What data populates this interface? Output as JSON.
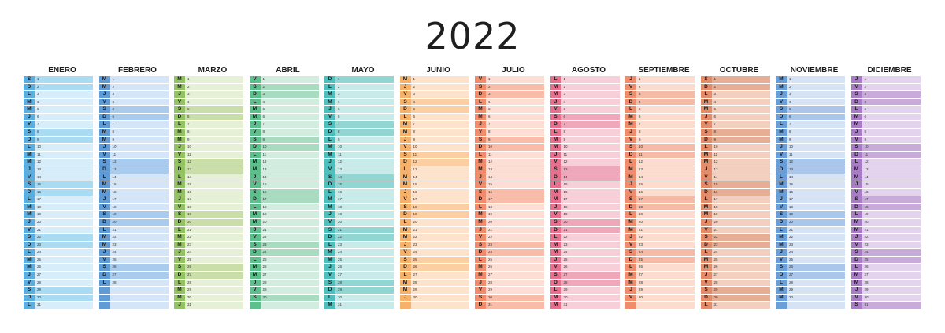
{
  "title": "2022",
  "months": [
    {
      "name": "ENERO",
      "start": 5,
      "days": 31,
      "colors": {
        "letter": "#5aaee0",
        "letterWeekend": "#5aaee0",
        "cell": "#d7eefa",
        "weekend": "#a9dcf3"
      }
    },
    {
      "name": "FEBRERO",
      "start": 1,
      "days": 28,
      "colors": {
        "letter": "#5e9bd7",
        "letterWeekend": "#5e9bd7",
        "cell": "#d3e5f6",
        "weekend": "#a9cbed"
      }
    },
    {
      "name": "MARZO",
      "start": 1,
      "days": 31,
      "colors": {
        "letter": "#93c263",
        "letterWeekend": "#93c263",
        "cell": "#e6f0d6",
        "weekend": "#c9dea8"
      }
    },
    {
      "name": "ABRIL",
      "start": 4,
      "days": 30,
      "colors": {
        "letter": "#5cbf8c",
        "letterWeekend": "#5cbf8c",
        "cell": "#d2ecdf",
        "weekend": "#a8dbc0"
      }
    },
    {
      "name": "MAYO",
      "start": 6,
      "days": 31,
      "colors": {
        "letter": "#4fbfbd",
        "letterWeekend": "#4fbfbd",
        "cell": "#c8ebe9",
        "weekend": "#92d6d4"
      }
    },
    {
      "name": "JUNIO",
      "start": 2,
      "days": 30,
      "colors": {
        "letter": "#f6b26b",
        "letterWeekend": "#f6b26b",
        "cell": "#fde3cb",
        "weekend": "#fbcfa2"
      }
    },
    {
      "name": "JULIO",
      "start": 4,
      "days": 31,
      "colors": {
        "letter": "#f08c6c",
        "letterWeekend": "#f08c6c",
        "cell": "#fcded4",
        "weekend": "#f8bca8"
      }
    },
    {
      "name": "AGOSTO",
      "start": 0,
      "days": 31,
      "colors": {
        "letter": "#e5718f",
        "letterWeekend": "#e5718f",
        "cell": "#f6cfd9",
        "weekend": "#efa7ba"
      }
    },
    {
      "name": "SEPTIEMBRE",
      "start": 3,
      "days": 30,
      "colors": {
        "letter": "#f08b6b",
        "letterWeekend": "#f08b6b",
        "cell": "#fcdccf",
        "weekend": "#f6bba6"
      }
    },
    {
      "name": "OCTUBRE",
      "start": 5,
      "days": 31,
      "colors": {
        "letter": "#e48c6a",
        "letterWeekend": "#e48c6a",
        "cell": "#f2cfbf",
        "weekend": "#e6ae94"
      }
    },
    {
      "name": "NOVIEMBRE",
      "start": 1,
      "days": 30,
      "colors": {
        "letter": "#6a9ed9",
        "letterWeekend": "#6a9ed9",
        "cell": "#d5e3f5",
        "weekend": "#aac6ea"
      }
    },
    {
      "name": "DICIEMBRE",
      "start": 3,
      "days": 31,
      "colors": {
        "letter": "#a97cc6",
        "letterWeekend": "#a97cc6",
        "cell": "#e3d3ec",
        "weekend": "#c9abd9"
      }
    }
  ],
  "weekday_letters": [
    "L",
    "M",
    "M",
    "J",
    "V",
    "S",
    "D"
  ],
  "max_rows": 31
}
